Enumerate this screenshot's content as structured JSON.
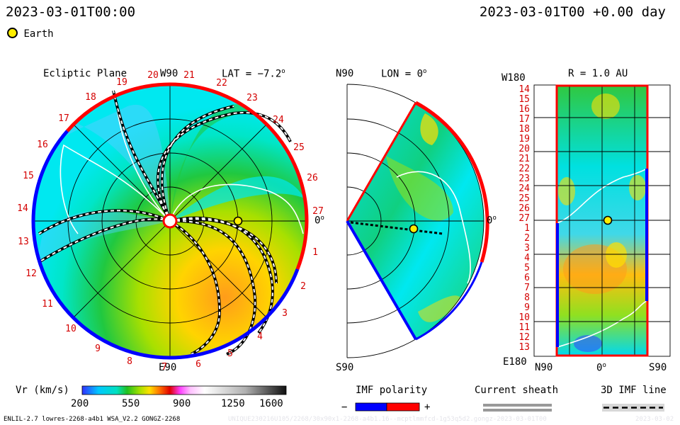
{
  "header": {
    "datetime": "2023-03-01T00:00",
    "datetime_right": "2023-03-01T00 +0.00 day",
    "legend_label": "Earth"
  },
  "panels": {
    "ecliptic": {
      "title": "Ecliptic Plane",
      "lat_label": "LAT = −7.2",
      "top_label": "W90",
      "bottom_label": "E90",
      "right_label": "0",
      "rotation_numbers": [
        "1",
        "2",
        "3",
        "4",
        "5",
        "6",
        "7",
        "8",
        "9",
        "10",
        "11",
        "12",
        "13",
        "14",
        "15",
        "16",
        "17",
        "18",
        "19",
        "20",
        "21",
        "22",
        "23",
        "24",
        "25",
        "26",
        "27"
      ]
    },
    "meridional": {
      "top_label": "N90",
      "bottom_label": "S90",
      "lon_label": "LON = 0",
      "right_label": "0"
    },
    "radial": {
      "title": "R = 1.0 AU",
      "left_top": "W180",
      "left_bottom": "E180",
      "x_labels": [
        "N90",
        "0",
        "S90"
      ],
      "rows": [
        "14",
        "15",
        "16",
        "17",
        "18",
        "19",
        "20",
        "21",
        "22",
        "23",
        "24",
        "25",
        "26",
        "27",
        "1",
        "2",
        "3",
        "4",
        "5",
        "6",
        "7",
        "8",
        "9",
        "10",
        "11",
        "12",
        "13"
      ]
    }
  },
  "colorbar": {
    "label": "Vr (km/s)",
    "ticks": [
      "200",
      "550",
      "900",
      "1250",
      "1600"
    ],
    "range": [
      200,
      1600
    ]
  },
  "legends": {
    "imf_polarity": "IMF polarity",
    "minus": "−",
    "plus": "+",
    "current_sheath": "Current sheath",
    "imf_line": "3D IMF line",
    "positive_color": "#ff0000",
    "negative_color": "#0000ff"
  },
  "footer": {
    "model": "ENLIL-2.7 lowres-2268-a4b1 WSA_V2.2 GONGZ-2268",
    "run_id": "UNIQUE230216U105/2268/30x90x1-2268-a4b1.16--mcptlmmfcd-1g53q5d2.gongz-2023-03-01T00",
    "run_date": "2023-03-02"
  },
  "chart_data": {
    "type": "heatmap",
    "title": "Vr (km/s)",
    "quantity": "solar wind radial velocity",
    "units": "km/s",
    "range": [
      200,
      1600
    ],
    "earth": {
      "radius_au": 1.0,
      "longitude_deg": 0,
      "latitude_deg": -7.2
    },
    "panels": [
      "Ecliptic Plane",
      "LON = 0",
      "R = 1.0 AU"
    ]
  }
}
